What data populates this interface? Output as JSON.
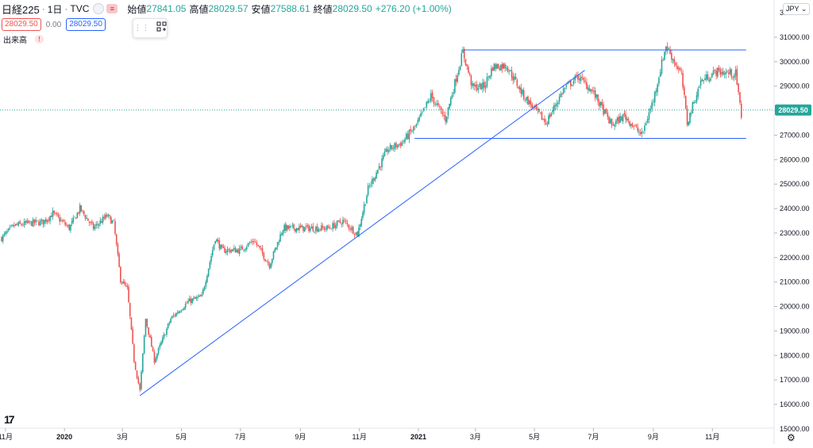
{
  "header": {
    "symbol": "日経225",
    "interval": "1日",
    "source": "TVC",
    "open_label": "始値",
    "open_value": "27841.05",
    "high_label": "高値",
    "high_value": "28029.57",
    "low_label": "安値",
    "low_value": "27588.61",
    "close_label": "終値",
    "close_value": "28029.50",
    "change": "+276.20 (+1.00%)"
  },
  "row2": {
    "bid": "28029.50",
    "spread": "0.00",
    "ask": "28029.50"
  },
  "volume_label": "出来高",
  "currency": "JPY",
  "last_price_label": "28029.50",
  "colors": {
    "up": "#26a69a",
    "down": "#ef5350",
    "line": "#2962ff",
    "price_tag": "#26a69a"
  },
  "chart_data": {
    "type": "candlestick",
    "title": "日経225",
    "y_ticks": [
      16000,
      17000,
      18000,
      19000,
      20000,
      21000,
      22000,
      23000,
      24000,
      25000,
      26000,
      27000,
      28000,
      29000,
      30000,
      31000
    ],
    "y_range": [
      15000,
      32000
    ],
    "x_labels": [
      {
        "label": "11月",
        "month": "2019-11"
      },
      {
        "label": "2020",
        "month": "2020-01"
      },
      {
        "label": "3月",
        "month": "2020-03"
      },
      {
        "label": "5月",
        "month": "2020-05"
      },
      {
        "label": "7月",
        "month": "2020-07"
      },
      {
        "label": "9月",
        "month": "2020-09"
      },
      {
        "label": "11月",
        "month": "2020-11"
      },
      {
        "label": "2021",
        "month": "2021-01"
      },
      {
        "label": "3月",
        "month": "2021-03"
      },
      {
        "label": "5月",
        "month": "2021-05"
      },
      {
        "label": "7月",
        "month": "2021-07"
      },
      {
        "label": "9月",
        "month": "2021-09"
      },
      {
        "label": "11月",
        "month": "2021-11"
      }
    ],
    "close_anchors": [
      [
        "2019-10-28",
        22800
      ],
      [
        "2019-11-10",
        23300
      ],
      [
        "2019-11-25",
        23400
      ],
      [
        "2019-12-10",
        23450
      ],
      [
        "2019-12-20",
        23800
      ],
      [
        "2020-01-06",
        23200
      ],
      [
        "2020-01-17",
        24000
      ],
      [
        "2020-01-31",
        23200
      ],
      [
        "2020-02-14",
        23700
      ],
      [
        "2020-02-21",
        23400
      ],
      [
        "2020-02-28",
        21100
      ],
      [
        "2020-03-06",
        20700
      ],
      [
        "2020-03-13",
        17800
      ],
      [
        "2020-03-19",
        16550
      ],
      [
        "2020-03-25",
        19500
      ],
      [
        "2020-04-03",
        17800
      ],
      [
        "2020-04-20",
        19500
      ],
      [
        "2020-05-08",
        20200
      ],
      [
        "2020-05-22",
        20400
      ],
      [
        "2020-06-05",
        22800
      ],
      [
        "2020-06-12",
        22300
      ],
      [
        "2020-06-30",
        22300
      ],
      [
        "2020-07-15",
        22700
      ],
      [
        "2020-07-31",
        21700
      ],
      [
        "2020-08-14",
        23200
      ],
      [
        "2020-09-04",
        23200
      ],
      [
        "2020-09-30",
        23200
      ],
      [
        "2020-10-15",
        23500
      ],
      [
        "2020-10-30",
        22950
      ],
      [
        "2020-11-10",
        24800
      ],
      [
        "2020-11-30",
        26400
      ],
      [
        "2020-12-15",
        26700
      ],
      [
        "2020-12-30",
        27400
      ],
      [
        "2021-01-14",
        28600
      ],
      [
        "2021-01-29",
        27650
      ],
      [
        "2021-02-16",
        30400
      ],
      [
        "2021-02-26",
        28950
      ],
      [
        "2021-03-10",
        29000
      ],
      [
        "2021-03-19",
        29800
      ],
      [
        "2021-04-02",
        29850
      ],
      [
        "2021-04-20",
        28600
      ],
      [
        "2021-05-13",
        27500
      ],
      [
        "2021-05-31",
        28860
      ],
      [
        "2021-06-15",
        29400
      ],
      [
        "2021-06-30",
        28800
      ],
      [
        "2021-07-20",
        27400
      ],
      [
        "2021-08-02",
        27800
      ],
      [
        "2021-08-20",
        27000
      ],
      [
        "2021-09-01",
        28450
      ],
      [
        "2021-09-14",
        30670
      ],
      [
        "2021-09-30",
        29450
      ],
      [
        "2021-10-06",
        27500
      ],
      [
        "2021-10-20",
        29200
      ],
      [
        "2021-11-05",
        29600
      ],
      [
        "2021-11-25",
        29500
      ],
      [
        "2021-12-01",
        27800
      ],
      [
        "2021-12-03",
        28029.5
      ]
    ],
    "trendlines": [
      {
        "from": [
          "2020-03-19",
          16358
        ],
        "to": [
          "2021-06-22",
          29650
        ]
      },
      {
        "from": [
          "2021-02-16",
          30480
        ],
        "to": [
          "2021-12-06",
          30480
        ]
      },
      {
        "from": [
          "2020-12-28",
          26870
        ],
        "to": [
          "2021-12-06",
          26870
        ]
      }
    ],
    "last_price": 28029.5
  }
}
